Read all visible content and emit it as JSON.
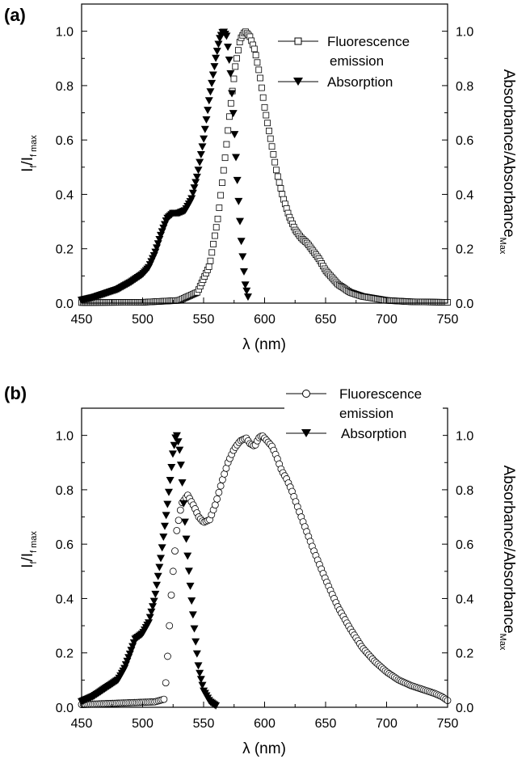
{
  "chart_data": [
    {
      "type": "line",
      "panel_label": "(a)",
      "xlabel": "λ (nm)",
      "ylabel_main": "I",
      "ylabel_sub1": "f",
      "ylabel_mid": "/I",
      "ylabel_sub2": "f max",
      "y2label_main": "Absorbance/Absorbance",
      "y2label_sub": "Max",
      "xlim": [
        450,
        750
      ],
      "ylim": [
        0,
        1.1
      ],
      "xticks": [
        "450",
        "500",
        "550",
        "600",
        "650",
        "700",
        "750"
      ],
      "yticks": [
        "0.0",
        "0.2",
        "0.4",
        "0.6",
        "0.8",
        "1.0"
      ],
      "grid": false,
      "legend": "top-right",
      "series": [
        {
          "name": "Fluorescence",
          "name_line2": "emission",
          "marker": "open-square",
          "x_range": [
            450,
            750
          ],
          "x_step": 1.2,
          "points": [
            [
              450,
              0.002
            ],
            [
              500,
              0.003
            ],
            [
              530,
              0.01
            ],
            [
              545,
              0.04
            ],
            [
              555,
              0.14
            ],
            [
              562,
              0.32
            ],
            [
              568,
              0.55
            ],
            [
              572,
              0.72
            ],
            [
              576,
              0.87
            ],
            [
              580,
              0.97
            ],
            [
              584,
              1.0
            ],
            [
              588,
              0.98
            ],
            [
              592,
              0.93
            ],
            [
              596,
              0.84
            ],
            [
              600,
              0.72
            ],
            [
              605,
              0.6
            ],
            [
              610,
              0.48
            ],
            [
              615,
              0.39
            ],
            [
              620,
              0.32
            ],
            [
              625,
              0.27
            ],
            [
              630,
              0.24
            ],
            [
              635,
              0.22
            ],
            [
              640,
              0.19
            ],
            [
              645,
              0.16
            ],
            [
              650,
              0.12
            ],
            [
              660,
              0.07
            ],
            [
              670,
              0.04
            ],
            [
              680,
              0.025
            ],
            [
              700,
              0.01
            ],
            [
              720,
              0.005
            ],
            [
              750,
              0.003
            ]
          ]
        },
        {
          "name": "Absorption",
          "marker": "filled-down-triangle",
          "x_range": [
            450,
            587
          ],
          "x_step": 1.1,
          "points": [
            [
              450,
              0.01
            ],
            [
              460,
              0.02
            ],
            [
              470,
              0.035
            ],
            [
              480,
              0.05
            ],
            [
              490,
              0.075
            ],
            [
              500,
              0.105
            ],
            [
              505,
              0.13
            ],
            [
              510,
              0.18
            ],
            [
              515,
              0.25
            ],
            [
              520,
              0.31
            ],
            [
              525,
              0.33
            ],
            [
              530,
              0.33
            ],
            [
              535,
              0.34
            ],
            [
              540,
              0.38
            ],
            [
              545,
              0.47
            ],
            [
              550,
              0.6
            ],
            [
              555,
              0.76
            ],
            [
              560,
              0.9
            ],
            [
              563,
              0.97
            ],
            [
              566,
              1.0
            ],
            [
              569,
              0.98
            ],
            [
              572,
              0.85
            ],
            [
              575,
              0.65
            ],
            [
              578,
              0.42
            ],
            [
              581,
              0.22
            ],
            [
              584,
              0.07
            ],
            [
              587,
              0.01
            ]
          ]
        }
      ]
    },
    {
      "type": "line",
      "panel_label": "(b)",
      "xlabel": "λ (nm)",
      "ylabel_main": "I",
      "ylabel_sub1": "f",
      "ylabel_mid": "/I",
      "ylabel_sub2": "f max",
      "y2label_main": "Absorbance/Absorbance",
      "y2label_sub": "Max",
      "xlim": [
        450,
        750
      ],
      "ylim": [
        0,
        1.1
      ],
      "xticks": [
        "450",
        "500",
        "550",
        "600",
        "650",
        "700",
        "750"
      ],
      "yticks": [
        "0.0",
        "0.2",
        "0.4",
        "0.6",
        "0.8",
        "1.0"
      ],
      "grid": false,
      "legend": "top-right",
      "series": [
        {
          "name": "Fluorescence",
          "name_line2": "emission",
          "marker": "open-circle",
          "x_range": [
            450,
            750
          ],
          "x_step": 1.5,
          "points": [
            [
              450,
              0.01
            ],
            [
              480,
              0.015
            ],
            [
              510,
              0.02
            ],
            [
              518,
              0.03
            ],
            [
              520,
              0.15
            ],
            [
              524,
              0.45
            ],
            [
              528,
              0.65
            ],
            [
              532,
              0.75
            ],
            [
              537,
              0.78
            ],
            [
              542,
              0.74
            ],
            [
              546,
              0.7
            ],
            [
              550,
              0.68
            ],
            [
              555,
              0.69
            ],
            [
              560,
              0.75
            ],
            [
              565,
              0.83
            ],
            [
              570,
              0.9
            ],
            [
              575,
              0.95
            ],
            [
              580,
              0.98
            ],
            [
              585,
              0.99
            ],
            [
              588,
              0.97
            ],
            [
              592,
              0.96
            ],
            [
              595,
              0.99
            ],
            [
              598,
              1.0
            ],
            [
              602,
              0.98
            ],
            [
              606,
              0.96
            ],
            [
              610,
              0.92
            ],
            [
              614,
              0.87
            ],
            [
              618,
              0.84
            ],
            [
              622,
              0.8
            ],
            [
              630,
              0.7
            ],
            [
              640,
              0.58
            ],
            [
              650,
              0.47
            ],
            [
              660,
              0.37
            ],
            [
              670,
              0.29
            ],
            [
              680,
              0.22
            ],
            [
              690,
              0.17
            ],
            [
              700,
              0.13
            ],
            [
              710,
              0.1
            ],
            [
              720,
              0.08
            ],
            [
              730,
              0.065
            ],
            [
              740,
              0.05
            ],
            [
              745,
              0.04
            ],
            [
              750,
              0.025
            ]
          ]
        },
        {
          "name": "Absorption",
          "marker": "filled-down-triangle",
          "x_range": [
            450,
            560
          ],
          "x_step": 1.1,
          "points": [
            [
              450,
              0.02
            ],
            [
              460,
              0.04
            ],
            [
              470,
              0.07
            ],
            [
              480,
              0.1
            ],
            [
              485,
              0.14
            ],
            [
              490,
              0.2
            ],
            [
              494,
              0.25
            ],
            [
              500,
              0.27
            ],
            [
              505,
              0.31
            ],
            [
              510,
              0.4
            ],
            [
              515,
              0.55
            ],
            [
              520,
              0.73
            ],
            [
              523,
              0.85
            ],
            [
              525,
              0.94
            ],
            [
              527,
              0.99
            ],
            [
              528,
              1.0
            ],
            [
              530,
              0.96
            ],
            [
              532,
              0.86
            ],
            [
              534,
              0.72
            ],
            [
              537,
              0.55
            ],
            [
              540,
              0.4
            ],
            [
              543,
              0.26
            ],
            [
              546,
              0.14
            ],
            [
              550,
              0.06
            ],
            [
              555,
              0.02
            ],
            [
              560,
              0.005
            ]
          ]
        }
      ]
    }
  ]
}
